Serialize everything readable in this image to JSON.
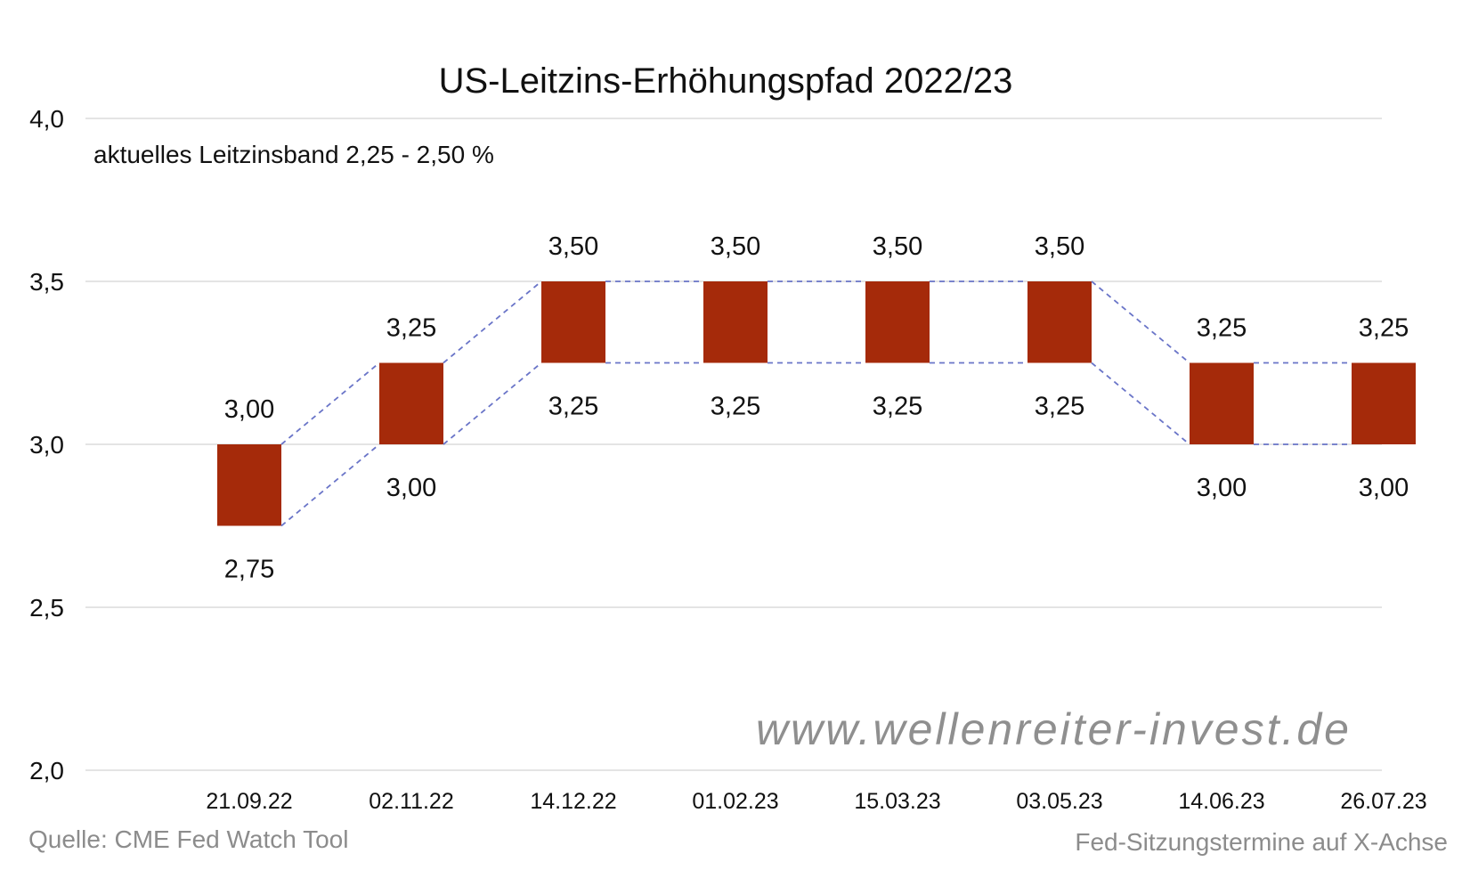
{
  "colors": {
    "bar": "#a52a0a",
    "band_line": "#6a75c8",
    "grid": "#dcdcdc"
  },
  "chart_data": {
    "type": "bar",
    "title": "US-Leitzins-Erhöhungspfad 2022/23",
    "subtitle": "aktuelles Leitzinsband 2,25 - 2,50 %",
    "ylim": [
      2.0,
      4.0
    ],
    "yticks": [
      2.0,
      2.5,
      3.0,
      3.5,
      4.0
    ],
    "ytick_labels": [
      "2,0",
      "2,5",
      "3,0",
      "3,5",
      "4,0"
    ],
    "grid": true,
    "categories": [
      "21.09.22",
      "02.11.22",
      "14.12.22",
      "01.02.23",
      "15.03.23",
      "03.05.23",
      "14.06.23",
      "26.07.23"
    ],
    "low": [
      2.75,
      3.0,
      3.25,
      3.25,
      3.25,
      3.25,
      3.0,
      3.0
    ],
    "high": [
      3.0,
      3.25,
      3.5,
      3.5,
      3.5,
      3.5,
      3.25,
      3.25
    ],
    "low_labels": [
      "2,75",
      "3,00",
      "3,25",
      "3,25",
      "3,25",
      "3,25",
      "3,00",
      "3,00"
    ],
    "high_labels": [
      "3,00",
      "3,25",
      "3,50",
      "3,50",
      "3,50",
      "3,50",
      "3,25",
      "3,25"
    ],
    "source": "Quelle: CME Fed Watch Tool",
    "xaxis_note": "Fed-Sitzungstermine auf X-Achse",
    "watermark": "www.wellenreiter-invest.de"
  }
}
